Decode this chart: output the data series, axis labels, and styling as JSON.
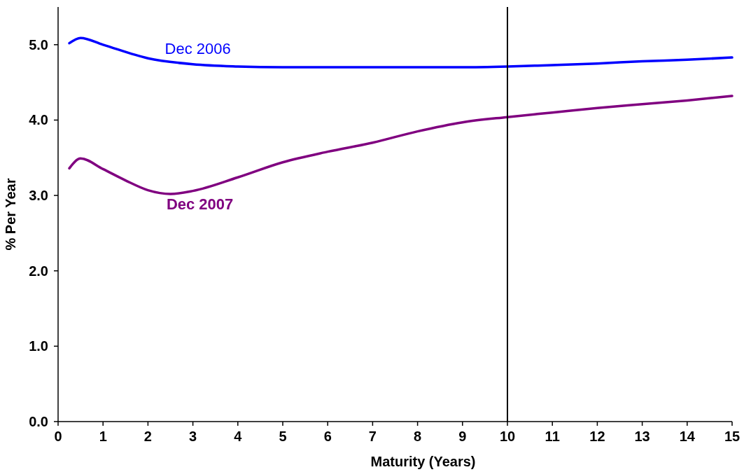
{
  "chart_data": {
    "type": "line",
    "xlabel": "Maturity (Years)",
    "ylabel": "% Per Year",
    "xlim": [
      0,
      15
    ],
    "ylim": [
      0,
      5.5
    ],
    "xticks": [
      0,
      1,
      2,
      3,
      4,
      5,
      6,
      7,
      8,
      9,
      10,
      11,
      12,
      13,
      14,
      15
    ],
    "yticks": [
      {
        "value": 0,
        "label": "0.0"
      },
      {
        "value": 1,
        "label": "1.0"
      },
      {
        "value": 2,
        "label": "2.0"
      },
      {
        "value": 3,
        "label": "3.0"
      },
      {
        "value": 4,
        "label": "4.0"
      },
      {
        "value": 5,
        "label": "5.0"
      }
    ],
    "grid": false,
    "marker": "none",
    "line_style": "solid",
    "ref_lines": [
      {
        "axis": "x",
        "value": 10,
        "color": "#000000"
      }
    ],
    "series": [
      {
        "name": "Dec 2006",
        "color": "#0000ff",
        "x": [
          0.25,
          0.5,
          1,
          2,
          3,
          4,
          5,
          6,
          7,
          8,
          9,
          10,
          11,
          12,
          13,
          14,
          15
        ],
        "values": [
          5.02,
          5.09,
          5.0,
          4.82,
          4.74,
          4.71,
          4.7,
          4.7,
          4.7,
          4.7,
          4.7,
          4.71,
          4.73,
          4.75,
          4.78,
          4.8,
          4.83
        ]
      },
      {
        "name": "Dec 2007",
        "color": "#800080",
        "x": [
          0.25,
          0.5,
          1,
          1.5,
          2,
          2.5,
          3,
          4,
          5,
          6,
          7,
          8,
          9,
          10,
          11,
          12,
          13,
          14,
          15
        ],
        "values": [
          3.36,
          3.49,
          3.35,
          3.2,
          3.07,
          3.02,
          3.06,
          3.24,
          3.44,
          3.58,
          3.7,
          3.85,
          3.97,
          4.04,
          4.1,
          4.16,
          4.21,
          4.26,
          4.32
        ]
      }
    ]
  }
}
